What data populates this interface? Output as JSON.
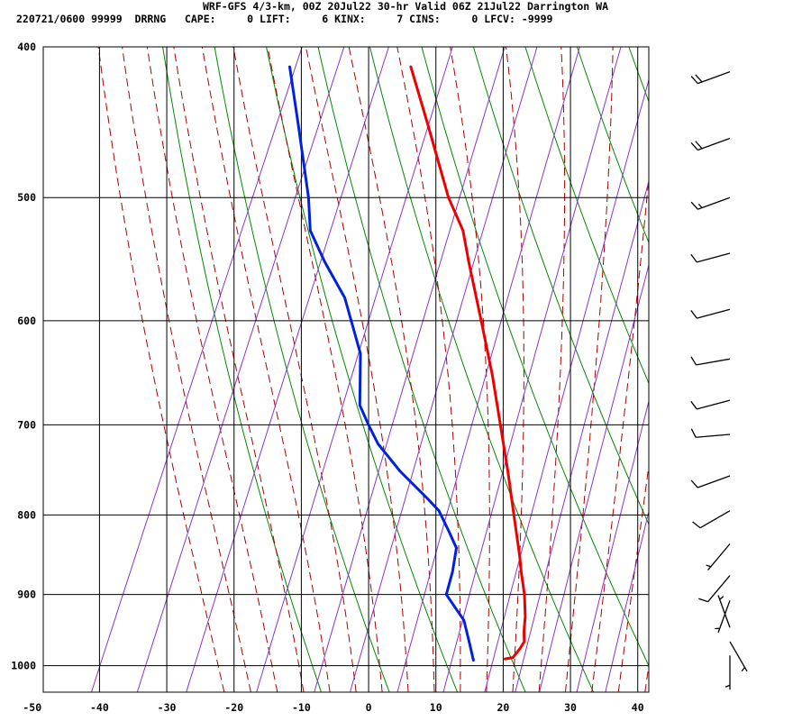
{
  "header": {
    "line1": "WRF-GFS 4/3-km, 00Z 20Jul22 30-hr Valid 06Z 21Jul22 Darrington WA",
    "line2": "220721/0600 99999  DRRNG   CAPE:     0 LIFT:     6 KINX:     7 CINS:     0 LFCV: -9999"
  },
  "chart_data": {
    "type": "line",
    "title": "WRF-GFS 4/3-km, 00Z 20Jul22 30-hr Valid 06Z 21Jul22 Darrington WA",
    "subtitle": "220721/0600 99999  DRRNG   CAPE:     0 LIFT:     6 KINX:     7 CINS:     0 LFCV: -9999",
    "xlabel": "",
    "ylabel": "",
    "x_ticks": [
      -50,
      -40,
      -30,
      -20,
      -10,
      0,
      10,
      20,
      30,
      40
    ],
    "y_ticks": [
      400,
      500,
      600,
      700,
      800,
      900,
      1000
    ],
    "xlim": [
      -50,
      40
    ],
    "ylim": [
      1040,
      400
    ],
    "y_scale": "log",
    "skew_per_decade_px": 720,
    "grid": true,
    "colors": {
      "temperature": "#ee0000",
      "dewpoint": "#0022dd",
      "dry_adiabat": "#008800",
      "moist_adiabat": "#aa0000",
      "mixing_ratio": "#8833cc",
      "grid": "#000000"
    },
    "series": [
      {
        "color": "#ee0000",
        "points": [
          {
            "p": 990,
            "t": 18.2
          },
          {
            "p": 988,
            "t": 19.3
          },
          {
            "p": 975,
            "t": 19.8
          },
          {
            "p": 965,
            "t": 20.0
          },
          {
            "p": 950,
            "t": 19.3
          },
          {
            "p": 930,
            "t": 18.6
          },
          {
            "p": 900,
            "t": 17.1
          },
          {
            "p": 870,
            "t": 15.2
          },
          {
            "p": 850,
            "t": 14.0
          },
          {
            "p": 800,
            "t": 10.6
          },
          {
            "p": 750,
            "t": 7.0
          },
          {
            "p": 700,
            "t": 3.0
          },
          {
            "p": 650,
            "t": -1.3
          },
          {
            "p": 600,
            "t": -6.3
          },
          {
            "p": 550,
            "t": -11.8
          },
          {
            "p": 525,
            "t": -14.6
          },
          {
            "p": 500,
            "t": -18.8
          },
          {
            "p": 450,
            "t": -26.2
          },
          {
            "p": 412,
            "t": -32.5
          }
        ]
      },
      {
        "color": "#0022dd",
        "points": [
          {
            "p": 992,
            "t": 13.6
          },
          {
            "p": 965,
            "t": 11.8
          },
          {
            "p": 935,
            "t": 9.7
          },
          {
            "p": 900,
            "t": 5.5
          },
          {
            "p": 870,
            "t": 5.0
          },
          {
            "p": 840,
            "t": 4.1
          },
          {
            "p": 820,
            "t": 2.0
          },
          {
            "p": 795,
            "t": -0.8
          },
          {
            "p": 780,
            "t": -3.4
          },
          {
            "p": 750,
            "t": -9.0
          },
          {
            "p": 720,
            "t": -14.0
          },
          {
            "p": 700,
            "t": -16.6
          },
          {
            "p": 680,
            "t": -19.1
          },
          {
            "p": 630,
            "t": -22.2
          },
          {
            "p": 580,
            "t": -28.0
          },
          {
            "p": 550,
            "t": -33.2
          },
          {
            "p": 525,
            "t": -37.3
          },
          {
            "p": 500,
            "t": -39.6
          },
          {
            "p": 450,
            "t": -45.5
          },
          {
            "p": 412,
            "t": -50.5
          }
        ]
      }
    ],
    "wind_barbs": [
      {
        "p": 415,
        "dir": 250,
        "spd": 20
      },
      {
        "p": 458,
        "dir": 250,
        "spd": 20
      },
      {
        "p": 500,
        "dir": 250,
        "spd": 15
      },
      {
        "p": 543,
        "dir": 255,
        "spd": 10
      },
      {
        "p": 590,
        "dir": 255,
        "spd": 10
      },
      {
        "p": 635,
        "dir": 260,
        "spd": 10
      },
      {
        "p": 675,
        "dir": 255,
        "spd": 10
      },
      {
        "p": 710,
        "dir": 265,
        "spd": 10
      },
      {
        "p": 755,
        "dir": 250,
        "spd": 10
      },
      {
        "p": 795,
        "dir": 240,
        "spd": 10
      },
      {
        "p": 835,
        "dir": 220,
        "spd": 5
      },
      {
        "p": 875,
        "dir": 220,
        "spd": 10
      },
      {
        "p": 908,
        "dir": 200,
        "spd": 5
      },
      {
        "p": 945,
        "dir": 340,
        "spd": 5
      },
      {
        "p": 965,
        "dir": 150,
        "spd": 5
      },
      {
        "p": 985,
        "dir": 180,
        "spd": 5
      }
    ]
  }
}
